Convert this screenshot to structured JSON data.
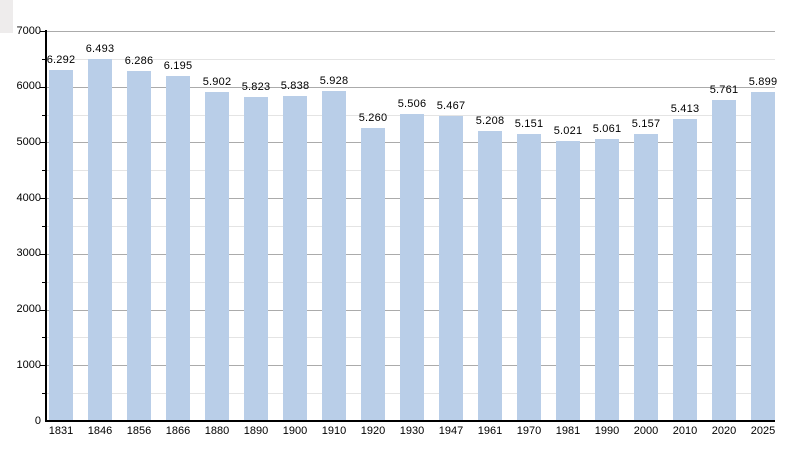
{
  "chart": {
    "background": "#ffffff",
    "bar_color": "#b9cee8",
    "axis_color": "#000000",
    "major_grid_color": "#ababab",
    "minor_grid_color": "#e4e4e4",
    "text_color": "#000000",
    "corner_artifact_color": "#eeecec"
  },
  "chart_data": {
    "type": "bar",
    "title": "",
    "xlabel": "",
    "ylabel": "",
    "categories": [
      "1831",
      "1846",
      "1856",
      "1866",
      "1880",
      "1890",
      "1900",
      "1910",
      "1920",
      "1930",
      "1947",
      "1961",
      "1970",
      "1981",
      "1990",
      "2000",
      "2010",
      "2020",
      "2025"
    ],
    "values": [
      6292,
      6493,
      6286,
      6195,
      5902,
      5823,
      5838,
      5928,
      5260,
      5506,
      5467,
      5208,
      5151,
      5021,
      5061,
      5157,
      5413,
      5761,
      5899
    ],
    "value_labels": [
      "6.292",
      "6.493",
      "6.286",
      "6.195",
      "5.902",
      "5.823",
      "5.838",
      "5.928",
      "5.260",
      "5.506",
      "5.467",
      "5.208",
      "5.151",
      "5.021",
      "5.061",
      "5.157",
      "5.413",
      "5.761",
      "5.899"
    ],
    "ylim": [
      0,
      7000
    ],
    "ytick_step": 1000,
    "y_minor_step": 500,
    "ytick_labels": [
      "0",
      "1000",
      "2000",
      "3000",
      "4000",
      "5000",
      "6000",
      "7000"
    ],
    "grid": "horizontal, major every 1000 and minor every 500",
    "legend": "none"
  }
}
